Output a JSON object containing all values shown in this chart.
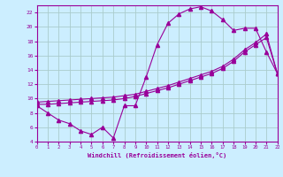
{
  "bg_color": "#cceeff",
  "grid_color": "#aacccc",
  "line_color": "#990099",
  "marker": "^",
  "ylim": [
    4,
    23
  ],
  "xlim": [
    0,
    22
  ],
  "yticks": [
    4,
    6,
    8,
    10,
    12,
    14,
    16,
    18,
    20,
    22
  ],
  "xticks": [
    0,
    1,
    2,
    3,
    4,
    5,
    6,
    7,
    8,
    9,
    10,
    11,
    12,
    13,
    14,
    15,
    16,
    17,
    18,
    19,
    20,
    21,
    22
  ],
  "xlabel": "Windchill (Refroidissement éolien,°C)",
  "curve1_x": [
    0,
    1,
    2,
    3,
    4,
    5,
    6,
    7,
    8,
    9,
    10,
    11,
    12,
    13,
    14,
    15,
    16,
    17,
    18,
    19,
    20,
    21,
    22
  ],
  "curve1_y": [
    9.0,
    8.0,
    7.0,
    6.5,
    5.5,
    5.0,
    6.0,
    4.5,
    9.0,
    9.0,
    13.0,
    17.5,
    20.5,
    21.8,
    22.5,
    22.8,
    22.2,
    21.0,
    19.5,
    19.8,
    19.8,
    16.5,
    13.5
  ],
  "curve2_x": [
    0,
    1,
    2,
    3,
    4,
    5,
    6,
    7,
    8,
    9,
    10,
    11,
    12,
    13,
    14,
    15,
    16,
    17,
    18,
    19,
    20,
    21,
    22
  ],
  "curve2_y": [
    9.2,
    9.2,
    9.3,
    9.4,
    9.5,
    9.6,
    9.7,
    9.8,
    10.0,
    10.3,
    10.7,
    11.1,
    11.5,
    12.0,
    12.5,
    13.0,
    13.5,
    14.2,
    15.2,
    16.5,
    17.5,
    18.5,
    13.5
  ],
  "curve3_x": [
    0,
    1,
    2,
    3,
    4,
    5,
    6,
    7,
    8,
    9,
    10,
    11,
    12,
    13,
    14,
    15,
    16,
    17,
    18,
    19,
    20,
    21,
    22
  ],
  "curve3_y": [
    9.5,
    9.6,
    9.7,
    9.8,
    9.9,
    10.0,
    10.1,
    10.2,
    10.4,
    10.6,
    11.0,
    11.4,
    11.8,
    12.3,
    12.8,
    13.3,
    13.8,
    14.5,
    15.5,
    16.8,
    17.8,
    19.0,
    13.5
  ]
}
